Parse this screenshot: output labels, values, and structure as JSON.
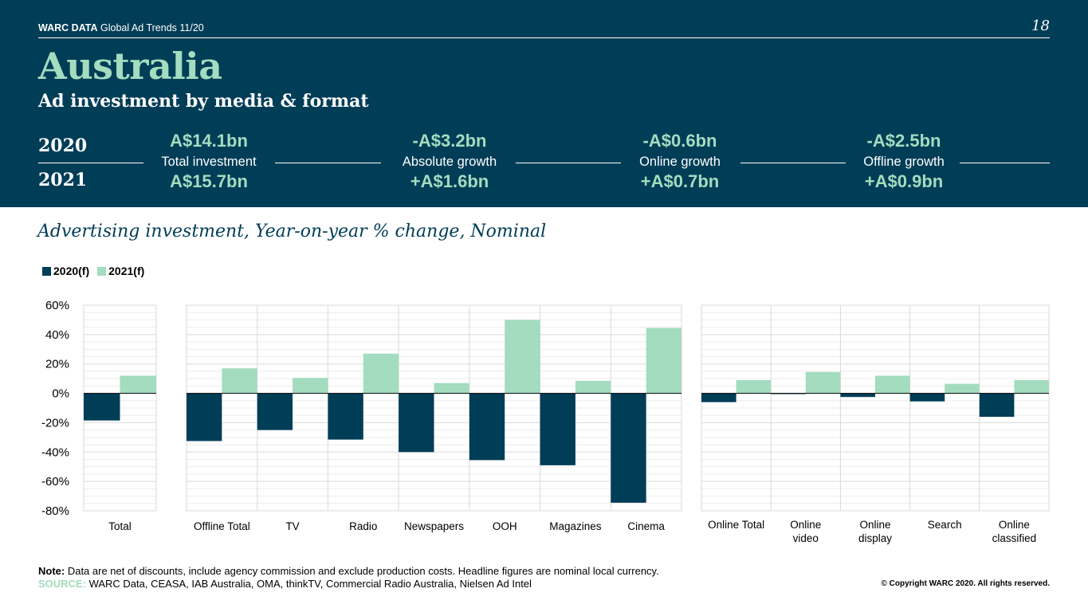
{
  "header": {
    "brand_bold": "WARC DATA",
    "brand_rest": "Global Ad Trends 11/20",
    "page_number": "18",
    "country": "Australia",
    "subtitle": "Ad investment by media & format",
    "year_a": "2020",
    "year_b": "2021",
    "stats": [
      {
        "v2020": "A$14.1bn",
        "label": "Total investment",
        "v2021": "A$15.7bn"
      },
      {
        "v2020": "-A$3.2bn",
        "label": "Absolute growth",
        "v2021": "+A$1.6bn"
      },
      {
        "v2020": "-A$0.6bn",
        "label": "Online growth",
        "v2021": "+A$0.7bn"
      },
      {
        "v2020": "-A$2.5bn",
        "label": "Offline growth",
        "v2021": "+A$0.9bn"
      }
    ]
  },
  "chart_title": "Advertising investment, Year-on-year % change, Nominal",
  "colors": {
    "header_bg": "#003d57",
    "accent": "#a3dcbf",
    "series_2020": "#003d57",
    "series_2021": "#a3dcbf"
  },
  "chart_data": {
    "type": "bar",
    "ylim": [
      -80,
      60
    ],
    "y_ticks": [
      "60%",
      "40%",
      "20%",
      "0%",
      "-20%",
      "-40%",
      "-60%",
      "-80%"
    ],
    "legend_position": "top-left",
    "series": [
      {
        "name": "2020(f)"
      },
      {
        "name": "2021(f)"
      }
    ],
    "panels": [
      {
        "categories": [
          "Total"
        ],
        "series_values": [
          [
            -18.5
          ],
          [
            12
          ]
        ]
      },
      {
        "categories": [
          "Offline Total",
          "TV",
          "Radio",
          "Newspapers",
          "OOH",
          "Magazines",
          "Cinema"
        ],
        "series_values": [
          [
            -32.5,
            -25,
            -31.5,
            -40,
            -45.5,
            -49,
            -74.5
          ],
          [
            17,
            10.5,
            27,
            7,
            50,
            8.5,
            44.5
          ]
        ]
      },
      {
        "categories": [
          "Online Total",
          "Online video",
          "Online display",
          "Search",
          "Online classified"
        ],
        "series_values": [
          [
            -6,
            -0.5,
            -2.5,
            -5.5,
            -16
          ],
          [
            9,
            14.5,
            12,
            6.5,
            9
          ]
        ]
      }
    ]
  },
  "footer": {
    "note_label": "Note:",
    "note_text": " Data are net of discounts, include agency commission and exclude production costs. Headline figures are nominal local currency.",
    "source_label": "SOURCE:",
    "source_text": " WARC Data, CEASA, IAB Australia, OMA, thinkTV, Commercial Radio Australia, Nielsen Ad Intel",
    "copyright": "© Copyright WARC 2020. All rights reserved."
  }
}
